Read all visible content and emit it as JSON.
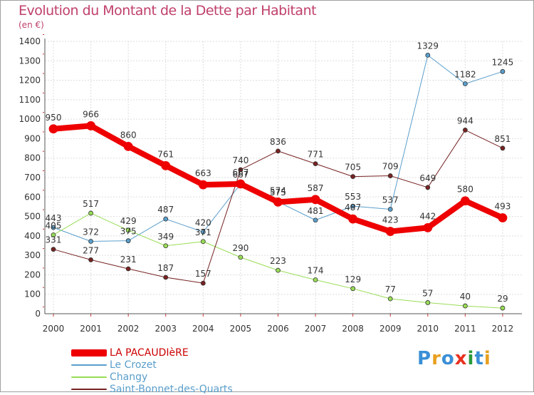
{
  "title": "Evolution du Montant de la Dette par Habitant",
  "unit": "(en €)",
  "logo": {
    "text": "Proxiti",
    "colors": [
      "#3a8fd6",
      "#e8a020",
      "#3a8fd6",
      "#e83020",
      "#2a9a3a",
      "#3a8fd6",
      "#e8a020"
    ]
  },
  "chart_data": {
    "type": "line",
    "x": [
      "2000",
      "2001",
      "2002",
      "2003",
      "2004",
      "2005",
      "2006",
      "2007",
      "2008",
      "2009",
      "2010",
      "2011",
      "2012"
    ],
    "ylim": [
      0,
      1400
    ],
    "yticks": [
      "0",
      "100",
      "200",
      "300",
      "400",
      "500",
      "600",
      "700",
      "800",
      "900",
      "1000",
      "1100",
      "1200",
      "1300",
      "1400"
    ],
    "grid": true,
    "series": [
      {
        "name": "LA PACAUDIèRE",
        "color": "#ee0000",
        "width": 8,
        "values": [
          950,
          966,
          860,
          761,
          663,
          667,
          574,
          587,
          487,
          423,
          442,
          580,
          493
        ],
        "labels": [
          "950",
          "966",
          "860",
          "761",
          "663",
          "667",
          "574",
          "587",
          "487",
          "423",
          "442",
          "580",
          "493"
        ]
      },
      {
        "name": "Le Crozet",
        "color": "#5a9ecb",
        "width": 1,
        "values": [
          443,
          372,
          375,
          487,
          420,
          667,
          575,
          481,
          553,
          537,
          1329,
          1182,
          1245
        ],
        "labels": [
          "443",
          "372",
          "375",
          "487",
          "420",
          "667",
          "575",
          "481",
          "553",
          "537",
          "1329",
          "1182",
          "1245"
        ]
      },
      {
        "name": "Changy",
        "color": "#99dd55",
        "width": 1,
        "values": [
          405,
          517,
          429,
          349,
          371,
          290,
          223,
          174,
          129,
          77,
          57,
          40,
          29
        ],
        "labels": [
          "405",
          "517",
          "429",
          "349",
          "371",
          "290",
          "223",
          "174",
          "129",
          "77",
          "57",
          "40",
          "29"
        ]
      },
      {
        "name": "Saint-Bonnet-des-Quarts",
        "color": "#772222",
        "width": 1,
        "values": [
          331,
          277,
          231,
          187,
          157,
          740,
          836,
          771,
          705,
          709,
          649,
          944,
          851
        ],
        "labels": [
          "331",
          "277",
          "231",
          "187",
          "157",
          "740",
          "836",
          "771",
          "705",
          "709",
          "649",
          "944",
          "851"
        ]
      }
    ]
  }
}
